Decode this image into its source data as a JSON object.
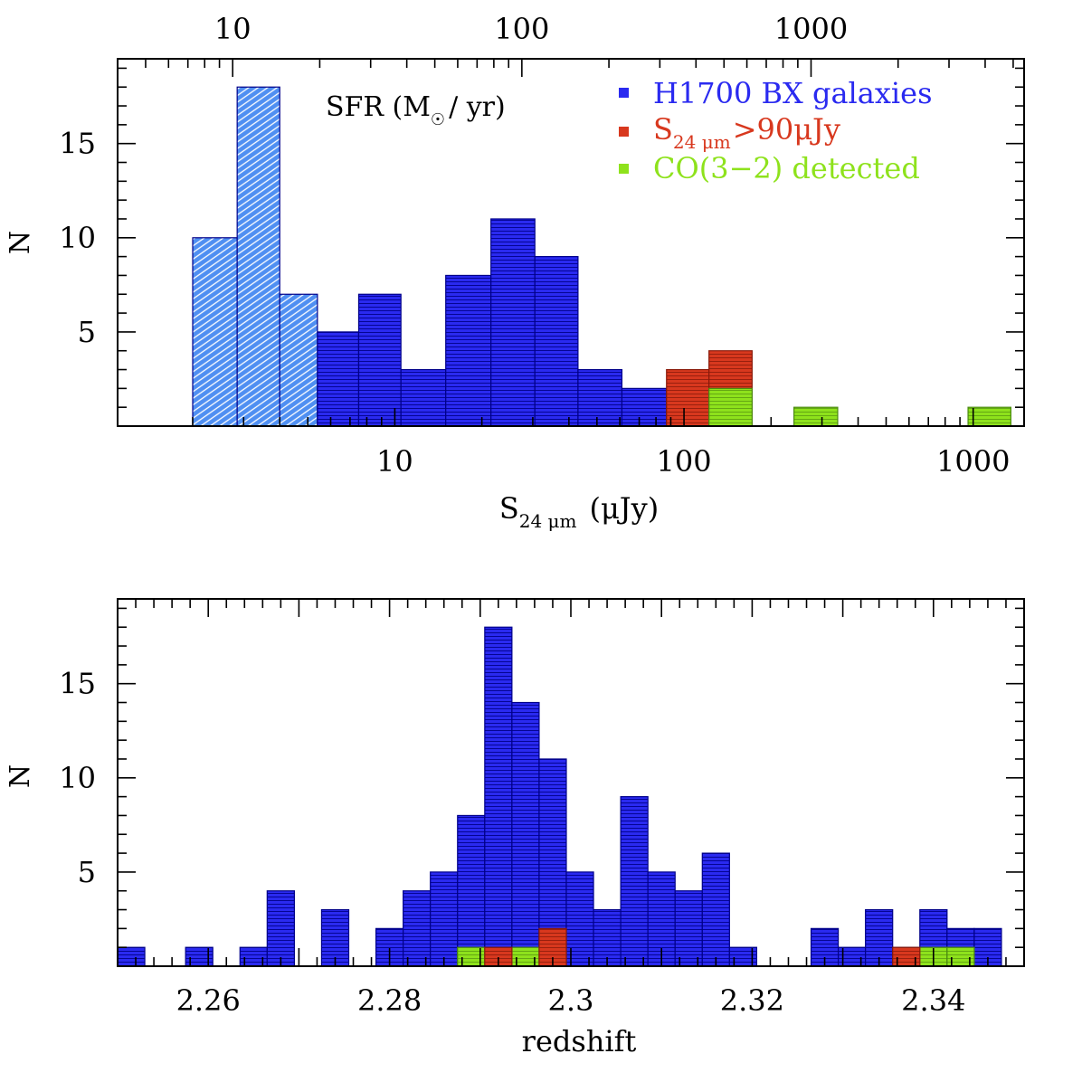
{
  "colors": {
    "blue": "#2a2af0",
    "blue_edge": "#00008a",
    "lightblue": "#4f8ff2",
    "red": "#d8381e",
    "green": "#8ee21c"
  },
  "chart_data": [
    {
      "type": "bar",
      "title": "",
      "xscale": "log",
      "xlim": [
        1.1,
        1500
      ],
      "ylim": [
        0,
        19.5
      ],
      "xlabel_main": "S",
      "xlabel_sub": "24 μm",
      "xlabel_unit": "(μJy)",
      "ylabel": "N",
      "bottom_tick_labels": [
        "10",
        "100",
        "1000"
      ],
      "bottom_tick_values": [
        10,
        100,
        1000
      ],
      "top_tick_labels": [
        "10",
        "100",
        "1000"
      ],
      "top_tick_positions_flux": [
        2.75,
        27.5,
        275
      ],
      "y_tick_labels": [
        "5",
        "10",
        "15"
      ],
      "y_tick_values": [
        5,
        10,
        15
      ],
      "top_axis_label_main": "SFR (M",
      "top_axis_label_sun": "☉",
      "top_axis_label_tail": "/ yr)",
      "legend": {
        "position": "top-right",
        "entries": [
          {
            "label": "H1700 BX galaxies",
            "color": "#2a2af0"
          },
          {
            "label_main": "S",
            "label_sub": "24 μm",
            "label_tail": ">90μJy",
            "color": "#d8381e"
          },
          {
            "label": "CO(3−2) detected",
            "color": "#8ee21c"
          }
        ]
      },
      "series": [
        {
          "name": "H1700 BX galaxies (undetected at 24μm, hatched)",
          "color": "lightblue",
          "bins": [
            {
              "x0": 2.0,
              "x1": 2.85,
              "n": 10
            },
            {
              "x0": 2.85,
              "x1": 4.0,
              "n": 18
            },
            {
              "x0": 4.0,
              "x1": 5.4,
              "n": 7
            },
            {
              "x0": 5.4,
              "x1": 7.5,
              "n": 2
            }
          ]
        },
        {
          "name": "H1700 BX galaxies",
          "color": "blue",
          "bins": [
            {
              "x0": 5.4,
              "x1": 7.5,
              "n": 5
            },
            {
              "x0": 7.5,
              "x1": 10.5,
              "n": 7
            },
            {
              "x0": 10.5,
              "x1": 15.0,
              "n": 3
            },
            {
              "x0": 15.0,
              "x1": 21.5,
              "n": 8
            },
            {
              "x0": 21.5,
              "x1": 30.5,
              "n": 11
            },
            {
              "x0": 30.5,
              "x1": 43.0,
              "n": 9
            },
            {
              "x0": 43.0,
              "x1": 61.0,
              "n": 3
            },
            {
              "x0": 61.0,
              "x1": 87.0,
              "n": 2
            }
          ]
        },
        {
          "name": "S24μm>90μJy",
          "color": "red",
          "bins": [
            {
              "x0": 87.0,
              "x1": 122.0,
              "n": 3
            },
            {
              "x0": 122.0,
              "x1": 172.0,
              "n": 4
            }
          ]
        },
        {
          "name": "CO(3-2) detected",
          "color": "green",
          "bins": [
            {
              "x0": 122.0,
              "x1": 172.0,
              "n": 2
            },
            {
              "x0": 240.0,
              "x1": 340.0,
              "n": 1
            },
            {
              "x0": 960.0,
              "x1": 1350.0,
              "n": 1
            }
          ]
        }
      ]
    },
    {
      "type": "bar",
      "title": "",
      "xscale": "linear",
      "xlim": [
        2.25,
        2.35
      ],
      "ylim": [
        0,
        19.5
      ],
      "xlabel": "redshift",
      "ylabel": "N",
      "x_tick_labels": [
        "2.26",
        "2.28",
        "2.3",
        "2.32",
        "2.34"
      ],
      "x_tick_values": [
        2.26,
        2.28,
        2.3,
        2.32,
        2.34
      ],
      "y_tick_labels": [
        "5",
        "10",
        "15"
      ],
      "y_tick_values": [
        5,
        10,
        15
      ],
      "series": [
        {
          "name": "H1700 BX galaxies",
          "color": "blue",
          "bin_width": 0.003,
          "bins": [
            {
              "x0": 2.25,
              "n": 1
            },
            {
              "x0": 2.2575,
              "n": 1
            },
            {
              "x0": 2.2635,
              "n": 1
            },
            {
              "x0": 2.2665,
              "n": 4
            },
            {
              "x0": 2.2725,
              "n": 3
            },
            {
              "x0": 2.2785,
              "n": 2
            },
            {
              "x0": 2.2815,
              "n": 4
            },
            {
              "x0": 2.2845,
              "n": 5
            },
            {
              "x0": 2.2875,
              "n": 8
            },
            {
              "x0": 2.2905,
              "n": 18
            },
            {
              "x0": 2.2935,
              "n": 14
            },
            {
              "x0": 2.2965,
              "n": 11
            },
            {
              "x0": 2.2995,
              "n": 5
            },
            {
              "x0": 2.3025,
              "n": 3
            },
            {
              "x0": 2.3055,
              "n": 9
            },
            {
              "x0": 2.3085,
              "n": 5
            },
            {
              "x0": 2.3115,
              "n": 4
            },
            {
              "x0": 2.3145,
              "n": 6
            },
            {
              "x0": 2.3175,
              "n": 1
            },
            {
              "x0": 2.3265,
              "n": 2
            },
            {
              "x0": 2.3295,
              "n": 1
            },
            {
              "x0": 2.3325,
              "n": 3
            },
            {
              "x0": 2.3355,
              "n": 1
            },
            {
              "x0": 2.3385,
              "n": 3
            },
            {
              "x0": 2.3415,
              "n": 2
            },
            {
              "x0": 2.3445,
              "n": 2
            }
          ]
        },
        {
          "name": "CO(3-2) detected",
          "color": "green",
          "bin_width": 0.003,
          "bins": [
            {
              "x0": 2.2875,
              "n": 1
            },
            {
              "x0": 2.2935,
              "n": 1
            },
            {
              "x0": 2.3385,
              "n": 1
            },
            {
              "x0": 2.3415,
              "n": 1
            }
          ]
        },
        {
          "name": "S24μm>90μJy",
          "color": "red",
          "bin_width": 0.003,
          "bins": [
            {
              "x0": 2.2905,
              "n": 1
            },
            {
              "x0": 2.2965,
              "n": 2
            },
            {
              "x0": 2.3355,
              "n": 1
            }
          ]
        }
      ]
    }
  ]
}
